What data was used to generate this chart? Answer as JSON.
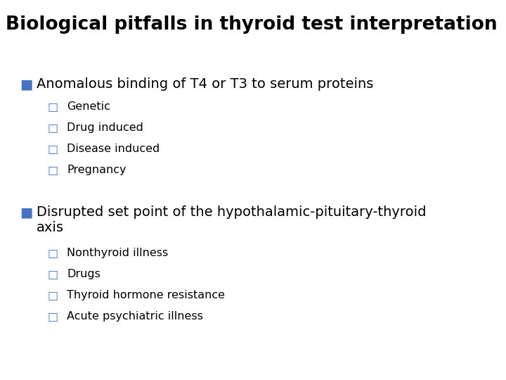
{
  "title": "Biological pitfalls in thyroid test interpretation",
  "title_fontsize": 19,
  "title_fontweight": "bold",
  "title_color": "#000000",
  "background_color": "#ffffff",
  "bullet1_text": "Anomalous binding of T4 or T3 to serum proteins",
  "bullet1_color": "#4472C4",
  "bullet1_subitems": [
    "Genetic",
    "Drug induced",
    "Disease induced",
    "Pregnancy"
  ],
  "bullet2_text_line1": "Disrupted set point of the hypothalamic-pituitary-thyroid",
  "bullet2_text_line2": "axis",
  "bullet2_color": "#4472C4",
  "bullet2_subitems": [
    "Nonthyroid illness",
    "Drugs",
    "Thyroid hormone resistance",
    "Acute psychiatric illness"
  ],
  "subitem_color": "#4472C4",
  "text_color": "#000000",
  "bullet_fontsize": 14,
  "subitem_fontsize": 11.5
}
